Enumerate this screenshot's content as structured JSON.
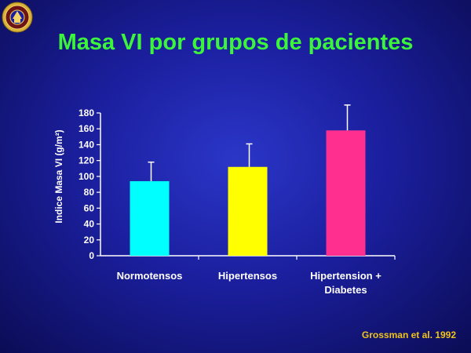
{
  "slide": {
    "title": "Masa VI por grupos de pacientes",
    "citation": "Grossman et al. 1992"
  },
  "colors": {
    "background": "#1b1f9e",
    "title": "#3cf43c",
    "citation": "#f0c419",
    "axis": "#ffffff"
  },
  "chart_data": {
    "type": "bar",
    "title": "",
    "xlabel": "",
    "ylabel": "Indice Masa VI (g/m²)",
    "ylim": [
      0,
      180
    ],
    "yticks": [
      0,
      20,
      40,
      60,
      80,
      100,
      120,
      140,
      160,
      180
    ],
    "categories": [
      [
        "Normotensos"
      ],
      [
        "Hipertensos"
      ],
      [
        "Hipertension +",
        "Diabetes"
      ]
    ],
    "values": [
      94,
      112,
      158
    ],
    "error_upper": [
      118,
      141,
      190
    ],
    "bar_colors": [
      "#00ffff",
      "#ffff00",
      "#ff2f8f"
    ],
    "grid": false,
    "legend": "none"
  }
}
